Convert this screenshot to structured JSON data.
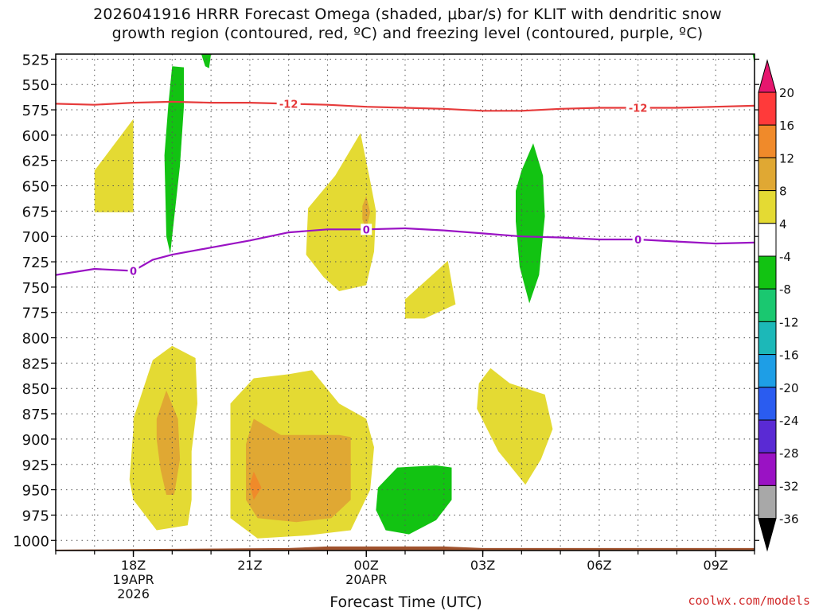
{
  "title_lines": [
    "2026041916 HRRR Forecast Omega (shaded, μbar/s) for KLIT with dendritic snow",
    "growth region (contoured, red, ºC) and freezing level (contoured, purple, ºC)"
  ],
  "credit": "coolwx.com/models",
  "chart_data": {
    "type": "contour",
    "xlabel": "Forecast Time (UTC)",
    "ylabel": "",
    "x_ticks": [
      {
        "h": 2,
        "lines": [
          "18Z",
          "19APR",
          "2026"
        ]
      },
      {
        "h": 5,
        "lines": [
          "21Z"
        ]
      },
      {
        "h": 8,
        "lines": [
          "00Z",
          "20APR"
        ]
      },
      {
        "h": 11,
        "lines": [
          "03Z"
        ]
      },
      {
        "h": 14,
        "lines": [
          "06Z"
        ]
      },
      {
        "h": 17,
        "lines": [
          "09Z"
        ]
      }
    ],
    "xlim": [
      0,
      18
    ],
    "y_ticks": [
      525,
      550,
      575,
      600,
      625,
      650,
      675,
      700,
      725,
      750,
      775,
      800,
      825,
      850,
      875,
      900,
      925,
      950,
      975,
      1000
    ],
    "ylim_mb": [
      520,
      1010
    ],
    "grid": "dotted",
    "colorbar": {
      "labels": [
        "20",
        "16",
        "12",
        "8",
        "4",
        "-4",
        "-8",
        "-12",
        "-16",
        "-20",
        "-24",
        "-28",
        "-32",
        "-36"
      ],
      "colors": [
        "#ff3a3a",
        "#f08a2a",
        "#e0a833",
        "#e4da33",
        "#ffffff",
        "#12c312",
        "#1ac870",
        "#1cb8b8",
        "#1e9ee6",
        "#2a5cf0",
        "#5a2ad4",
        "#9a12c4",
        "#a8a8a8"
      ],
      "top_color": "#e6166e",
      "bottom_color": "#000000"
    },
    "contour_lines": [
      {
        "label": "-12",
        "color": "#e63b3b",
        "points": [
          [
            0,
            569
          ],
          [
            1,
            570
          ],
          [
            2,
            568
          ],
          [
            3,
            567
          ],
          [
            4,
            568
          ],
          [
            5,
            568
          ],
          [
            6,
            569
          ],
          [
            7,
            570
          ],
          [
            8,
            572
          ],
          [
            9,
            573
          ],
          [
            10,
            574
          ],
          [
            11,
            576
          ],
          [
            12,
            576
          ],
          [
            13,
            574
          ],
          [
            14,
            573
          ],
          [
            15,
            573
          ],
          [
            16,
            573
          ],
          [
            17,
            572
          ],
          [
            18,
            571
          ]
        ],
        "label_at": [
          [
            6,
            569
          ],
          [
            15,
            573
          ]
        ]
      },
      {
        "label": "0",
        "color": "#9a12c4",
        "points": [
          [
            0,
            738
          ],
          [
            1,
            732
          ],
          [
            2,
            734
          ],
          [
            2.5,
            723
          ],
          [
            3,
            718
          ],
          [
            4,
            711
          ],
          [
            5,
            704
          ],
          [
            6,
            696
          ],
          [
            7,
            693
          ],
          [
            8,
            693
          ],
          [
            9,
            692
          ],
          [
            10,
            694
          ],
          [
            11,
            697
          ],
          [
            12,
            700
          ],
          [
            13,
            701
          ],
          [
            14,
            703
          ],
          [
            15,
            703
          ],
          [
            16,
            705
          ],
          [
            17,
            707
          ],
          [
            18,
            706
          ]
        ],
        "label_at": [
          [
            2,
            734
          ],
          [
            8,
            693
          ],
          [
            15,
            703
          ]
        ]
      }
    ],
    "shaded_regions": [
      {
        "value": 4,
        "color": "#e4da33",
        "points": [
          [
            1,
            635
          ],
          [
            2,
            584
          ],
          [
            2,
            676
          ],
          [
            1,
            676
          ]
        ]
      },
      {
        "value": -4,
        "color": "#12c312",
        "points": [
          [
            3,
            532
          ],
          [
            3.3,
            533
          ],
          [
            3.3,
            572
          ],
          [
            3.2,
            630
          ],
          [
            3.0,
            700
          ],
          [
            2.95,
            717
          ],
          [
            2.85,
            700
          ],
          [
            2.8,
            620
          ],
          [
            2.9,
            570
          ],
          [
            3.0,
            532
          ]
        ]
      },
      {
        "value": -4,
        "color": "#12c312",
        "points": [
          [
            3.75,
            520
          ],
          [
            4.0,
            520
          ],
          [
            3.95,
            534
          ],
          [
            3.85,
            532
          ]
        ]
      },
      {
        "value": 4,
        "color": "#e4da33",
        "points": [
          [
            6.5,
            672
          ],
          [
            7.2,
            640
          ],
          [
            7.85,
            598
          ],
          [
            8.1,
            645
          ],
          [
            8.25,
            675
          ],
          [
            8.2,
            715
          ],
          [
            8.0,
            748
          ],
          [
            7.3,
            754
          ],
          [
            6.9,
            740
          ],
          [
            6.45,
            718
          ]
        ]
      },
      {
        "value": 8,
        "color": "#e0a833",
        "points": [
          [
            7.9,
            670
          ],
          [
            8.0,
            660
          ],
          [
            8.1,
            676
          ],
          [
            8.0,
            693
          ],
          [
            7.9,
            683
          ]
        ]
      },
      {
        "value": 4,
        "color": "#e4da33",
        "points": [
          [
            9.0,
            762
          ],
          [
            9.7,
            738
          ],
          [
            10.1,
            724
          ],
          [
            10.3,
            767
          ],
          [
            9.5,
            781
          ],
          [
            9.0,
            781
          ]
        ]
      },
      {
        "value": -4,
        "color": "#12c312",
        "points": [
          [
            12.0,
            635
          ],
          [
            12.3,
            608
          ],
          [
            12.55,
            640
          ],
          [
            12.6,
            680
          ],
          [
            12.45,
            738
          ],
          [
            12.2,
            766
          ],
          [
            11.95,
            730
          ],
          [
            11.85,
            685
          ],
          [
            11.85,
            655
          ]
        ]
      },
      {
        "value": 4,
        "color": "#e4da33",
        "points": [
          [
            2.0,
            880
          ],
          [
            2.5,
            822
          ],
          [
            3.0,
            808
          ],
          [
            3.6,
            820
          ],
          [
            3.65,
            865
          ],
          [
            3.5,
            912
          ],
          [
            3.5,
            960
          ],
          [
            3.4,
            985
          ],
          [
            2.6,
            990
          ],
          [
            2.0,
            960
          ],
          [
            1.9,
            940
          ],
          [
            2.0,
            890
          ]
        ]
      },
      {
        "value": 8,
        "color": "#e0a833",
        "points": [
          [
            2.6,
            880
          ],
          [
            2.85,
            852
          ],
          [
            3.15,
            880
          ],
          [
            3.2,
            920
          ],
          [
            3.05,
            955
          ],
          [
            2.85,
            955
          ],
          [
            2.7,
            930
          ],
          [
            2.6,
            900
          ]
        ]
      },
      {
        "value": 4,
        "color": "#e4da33",
        "points": [
          [
            4.5,
            865
          ],
          [
            5.1,
            840
          ],
          [
            6.0,
            836
          ],
          [
            6.6,
            832
          ],
          [
            7.3,
            865
          ],
          [
            8.0,
            880
          ],
          [
            8.2,
            908
          ],
          [
            8.1,
            950
          ],
          [
            7.6,
            990
          ],
          [
            6.5,
            995
          ],
          [
            5.2,
            998
          ],
          [
            4.5,
            978
          ],
          [
            4.5,
            905
          ]
        ]
      },
      {
        "value": 8,
        "color": "#e0a833",
        "points": [
          [
            4.9,
            905
          ],
          [
            5.1,
            880
          ],
          [
            5.8,
            896
          ],
          [
            7.3,
            896
          ],
          [
            7.6,
            898
          ],
          [
            7.6,
            960
          ],
          [
            7.1,
            978
          ],
          [
            6.2,
            982
          ],
          [
            5.2,
            978
          ],
          [
            4.9,
            960
          ]
        ]
      },
      {
        "value": 12,
        "color": "#f08a2a",
        "points": [
          [
            5.0,
            945
          ],
          [
            5.1,
            932
          ],
          [
            5.3,
            948
          ],
          [
            5.1,
            960
          ]
        ]
      },
      {
        "value": -4,
        "color": "#12c312",
        "points": [
          [
            8.3,
            948
          ],
          [
            8.8,
            928
          ],
          [
            9.8,
            926
          ],
          [
            10.2,
            928
          ],
          [
            10.2,
            960
          ],
          [
            9.8,
            980
          ],
          [
            9.1,
            994
          ],
          [
            8.5,
            990
          ],
          [
            8.25,
            970
          ]
        ]
      },
      {
        "value": 4,
        "color": "#e4da33",
        "points": [
          [
            10.9,
            845
          ],
          [
            11.2,
            830
          ],
          [
            11.7,
            845
          ],
          [
            12.6,
            856
          ],
          [
            12.8,
            890
          ],
          [
            12.5,
            920
          ],
          [
            12.1,
            945
          ],
          [
            11.4,
            912
          ],
          [
            10.85,
            870
          ]
        ]
      },
      {
        "value": -4,
        "color": "#12c312",
        "points": [
          [
            17.95,
            520
          ],
          [
            18.0,
            520
          ],
          [
            18.0,
            530
          ]
        ]
      }
    ],
    "terrain": {
      "color": "#a0522d",
      "surface_mb": 1015
    }
  }
}
